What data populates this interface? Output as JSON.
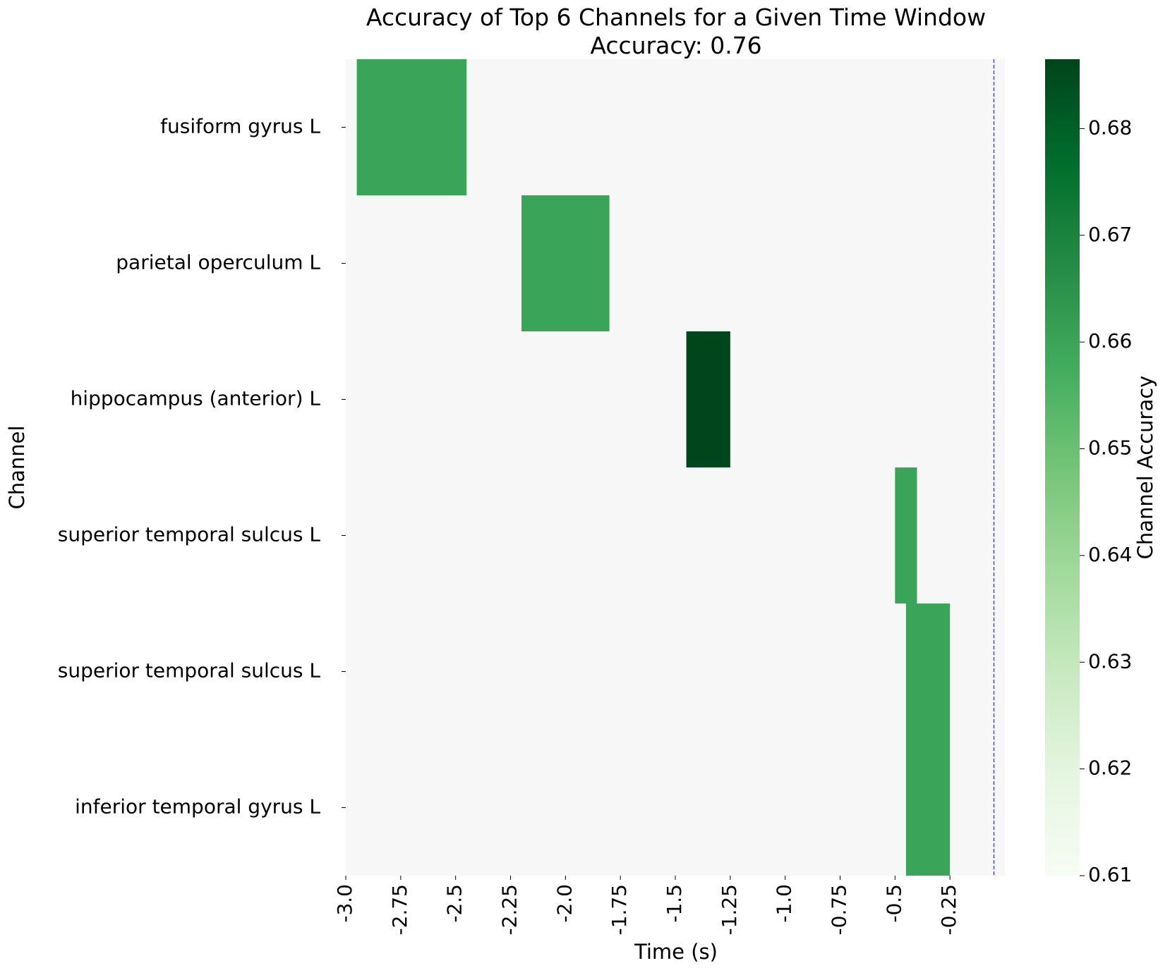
{
  "chart_data": {
    "type": "heatmap",
    "title": "Accuracy of Top 6 Channels for a Given Time Window",
    "subtitle": "Accuracy: 0.76",
    "xlabel": "Time (s)",
    "ylabel": "Channel",
    "colorbar_label": "Channel Accuracy",
    "rows": [
      "fusiform gyrus L",
      "parietal operculum L",
      "hippocampus (anterior) L",
      "superior temporal sulcus L",
      "superior temporal sulcus L",
      "inferior temporal gyrus L"
    ],
    "xlim": [
      -3.0,
      0.0
    ],
    "xticks": [
      -3.0,
      -2.75,
      -2.5,
      -2.25,
      -2.0,
      -1.75,
      -1.5,
      -1.25,
      -1.0,
      -0.75,
      -0.5,
      -0.25
    ],
    "xtick_labels": [
      "-3.0",
      "-2.75",
      "-2.5",
      "-2.25",
      "-2.0",
      "-1.75",
      "-1.5",
      "-1.25",
      "-1.0",
      "-0.75",
      "-0.5",
      "-0.25"
    ],
    "cells": [
      {
        "row": 0,
        "x_start": -2.95,
        "x_end": -2.45,
        "value": 0.66
      },
      {
        "row": 1,
        "x_start": -2.2,
        "x_end": -1.8,
        "value": 0.66
      },
      {
        "row": 2,
        "x_start": -1.45,
        "x_end": -1.25,
        "value": 0.686
      },
      {
        "row": 3,
        "x_start": -0.5,
        "x_end": -0.4,
        "value": 0.66
      },
      {
        "row": 4,
        "x_start": -0.45,
        "x_end": -0.25,
        "value": 0.66
      },
      {
        "row": 5,
        "x_start": -0.45,
        "x_end": -0.25,
        "value": 0.66
      }
    ],
    "reference_line": {
      "x": -0.05,
      "color": "#3333cc",
      "style": "dashed"
    },
    "colorbar": {
      "range": [
        0.61,
        0.6865
      ],
      "ticks": [
        0.61,
        0.62,
        0.63,
        0.64,
        0.65,
        0.66,
        0.67,
        0.68
      ],
      "tick_labels": [
        "0.61",
        "0.62",
        "0.63",
        "0.64",
        "0.65",
        "0.66",
        "0.67",
        "0.68"
      ],
      "colormap": "Greens",
      "background_color": "#f7f7f7"
    },
    "grid": false
  }
}
